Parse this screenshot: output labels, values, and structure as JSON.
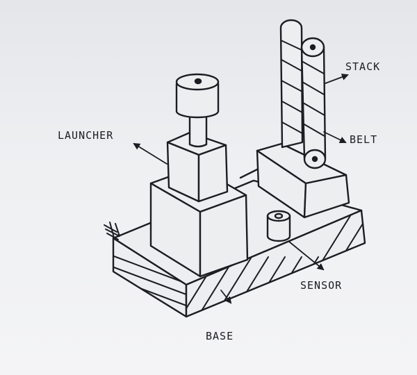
{
  "labels": {
    "launcher": "LAUNCHER",
    "stack": "STACK",
    "belt": "BELT",
    "sensor": "SENSOR",
    "base": "BASE"
  },
  "colors": {
    "ink": "#1c1c22",
    "paper": "#eeeff1"
  }
}
